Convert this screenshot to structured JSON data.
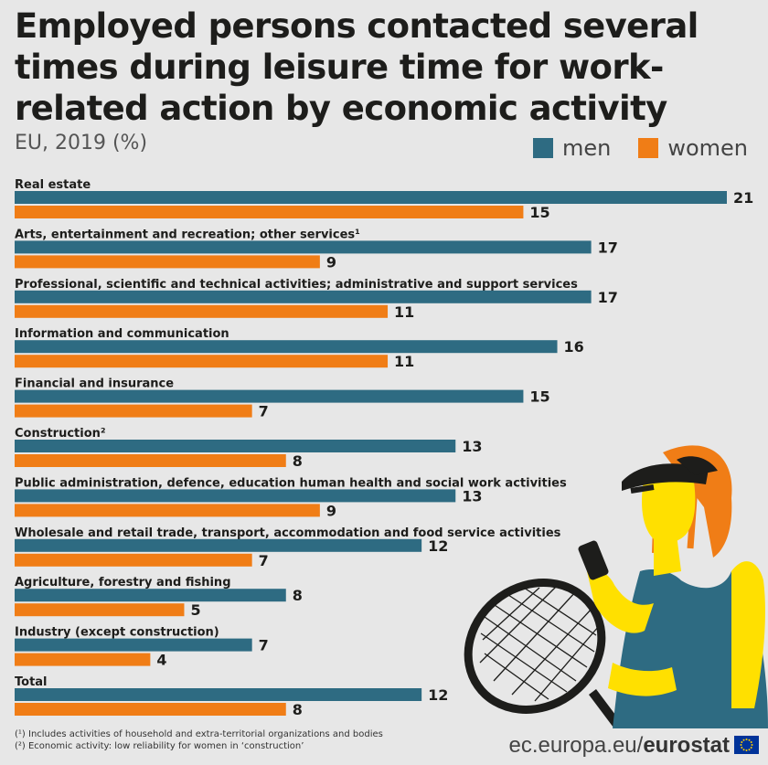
{
  "title": "Employed persons contacted several times during leisure time for work-related action by economic activity",
  "subtitle": "EU, 2019 (%)",
  "legend": {
    "men": "men",
    "women": "women"
  },
  "colors": {
    "men": "#2e6b82",
    "women": "#f07d16",
    "background": "#e7e7e7"
  },
  "chart_data": {
    "type": "bar",
    "orientation": "horizontal",
    "title": "Employed persons contacted several times during leisure time for work-related action by economic activity",
    "subtitle": "EU, 2019 (%)",
    "xlim": [
      0,
      21
    ],
    "categories": [
      "Real estate",
      "Arts, entertainment and recreation; other services¹",
      "Professional, scientific and technical activities; administrative and support services",
      "Information and communication",
      "Financial and insurance",
      "Construction²",
      "Public administration, defence, education human health and social work activities",
      "Wholesale and retail trade, transport, accommodation and food service activities",
      "Agriculture, forestry and fishing",
      "Industry (except construction)",
      "Total"
    ],
    "series": [
      {
        "name": "men",
        "values": [
          21,
          17,
          17,
          16,
          15,
          13,
          13,
          12,
          8,
          7,
          12
        ]
      },
      {
        "name": "women",
        "values": [
          15,
          9,
          11,
          11,
          7,
          8,
          9,
          7,
          5,
          4,
          8
        ]
      }
    ]
  },
  "footnotes": [
    "(¹) Includes activities of household and extra-territorial organizations and bodies",
    "(²) Economic activity: low reliability for women in ‘construction’"
  ],
  "source": {
    "domain": "ec.europa.eu/",
    "brand": "eurostat"
  }
}
